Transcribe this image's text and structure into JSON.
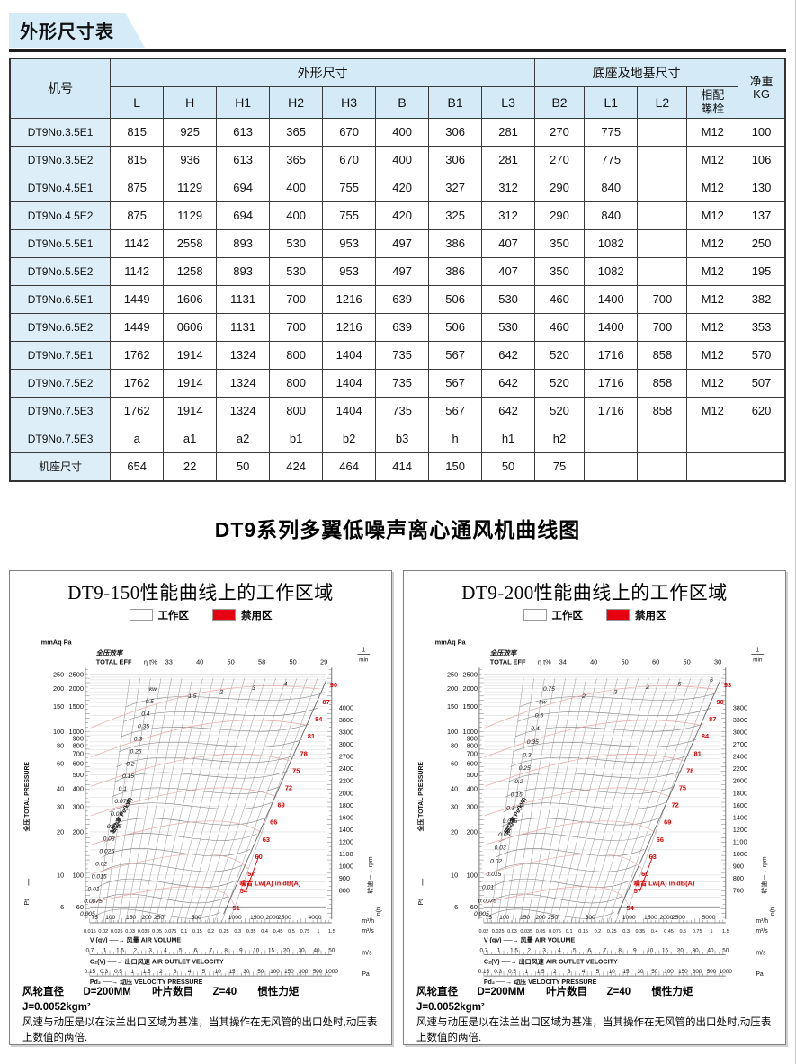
{
  "page": {
    "banner": "外形尺寸表",
    "section_title": "DT9系列多翼低噪声离心通风机曲线图"
  },
  "table": {
    "header": {
      "machine": "机号",
      "group_dims": "外形尺寸",
      "group_base": "底座及地基尺寸",
      "dim_cols": [
        "L",
        "H",
        "H1",
        "H2",
        "H3",
        "B",
        "B1",
        "L3"
      ],
      "base_cols": [
        "B2",
        "L1",
        "L2"
      ],
      "bolt_line1": "相配",
      "bolt_line2": "螺栓",
      "weight_line1": "净重",
      "weight_line2": "KG"
    },
    "rows": [
      {
        "model": "DT9No.3.5E1",
        "values": [
          "815",
          "925",
          "613",
          "365",
          "670",
          "400",
          "306",
          "281",
          "270",
          "775",
          "",
          "M12",
          "100"
        ]
      },
      {
        "model": "DT9No.3.5E2",
        "values": [
          "815",
          "936",
          "613",
          "365",
          "670",
          "400",
          "306",
          "281",
          "270",
          "775",
          "",
          "M12",
          "106"
        ]
      },
      {
        "model": "DT9No.4.5E1",
        "values": [
          "875",
          "1129",
          "694",
          "400",
          "755",
          "420",
          "327",
          "312",
          "290",
          "840",
          "",
          "M12",
          "130"
        ]
      },
      {
        "model": "DT9No.4.5E2",
        "values": [
          "875",
          "1129",
          "694",
          "400",
          "755",
          "420",
          "325",
          "312",
          "290",
          "840",
          "",
          "M12",
          "137"
        ]
      },
      {
        "model": "DT9No.5.5E1",
        "values": [
          "1142",
          "2558",
          "893",
          "530",
          "953",
          "497",
          "386",
          "407",
          "350",
          "1082",
          "",
          "M12",
          "250"
        ]
      },
      {
        "model": "DT9No.5.5E2",
        "values": [
          "1142",
          "1258",
          "893",
          "530",
          "953",
          "497",
          "386",
          "407",
          "350",
          "1082",
          "",
          "M12",
          "195"
        ]
      },
      {
        "model": "DT9No.6.5E1",
        "values": [
          "1449",
          "1606",
          "1131",
          "700",
          "1216",
          "639",
          "506",
          "530",
          "460",
          "1400",
          "700",
          "M12",
          "382"
        ]
      },
      {
        "model": "DT9No.6.5E2",
        "values": [
          "1449",
          "0606",
          "1131",
          "700",
          "1216",
          "639",
          "506",
          "530",
          "460",
          "1400",
          "700",
          "M12",
          "353"
        ]
      },
      {
        "model": "DT9No.7.5E1",
        "values": [
          "1762",
          "1914",
          "1324",
          "800",
          "1404",
          "735",
          "567",
          "642",
          "520",
          "1716",
          "858",
          "M12",
          "570"
        ]
      },
      {
        "model": "DT9No.7.5E2",
        "values": [
          "1762",
          "1914",
          "1324",
          "800",
          "1404",
          "735",
          "567",
          "642",
          "520",
          "1716",
          "858",
          "M12",
          "507"
        ]
      },
      {
        "model": "DT9No.7.5E3",
        "values": [
          "1762",
          "1914",
          "1324",
          "800",
          "1404",
          "735",
          "567",
          "642",
          "520",
          "1716",
          "858",
          "M12",
          "620"
        ]
      },
      {
        "model": "DT9No.7.5E3",
        "values": [
          "a",
          "a1",
          "a2",
          "b1",
          "b2",
          "b3",
          "h",
          "h1",
          "h2",
          "",
          "",
          "",
          ""
        ]
      },
      {
        "model": "机座尺寸",
        "values": [
          "654",
          "22",
          "50",
          "424",
          "464",
          "414",
          "150",
          "50",
          "75",
          "",
          "",
          "",
          ""
        ]
      }
    ]
  },
  "chart_data": [
    {
      "type": "line",
      "title": "DT9-150性能曲线上的工作区域",
      "legend": [
        {
          "label": "工作区",
          "color": "#ffffff"
        },
        {
          "label": "禁用区",
          "color": "#e60012"
        }
      ],
      "pressure_axis": {
        "header": "mmAq Pa",
        "unit_label": "全压 TOTAL PRESSURE",
        "symbol": "Pt",
        "mmaq": [
          "250",
          "200",
          "150",
          "100",
          "80",
          "60",
          "40",
          "30",
          "20",
          "10",
          "6"
        ],
        "pa": [
          "2500",
          "2000",
          "1500",
          "1000",
          "900",
          "800",
          "700",
          "600",
          "500",
          "400",
          "300",
          "200",
          "100",
          "60"
        ]
      },
      "efficiency": {
        "label_cn": "全压效率",
        "label_en": "TOTAL EFF",
        "symbol": "η t%",
        "values": [
          "33",
          "40",
          "50",
          "58",
          "50",
          "29"
        ]
      },
      "rpm_axis": {
        "unit_top": "1/min",
        "values": [
          "4000",
          "3800",
          "3300",
          "3000",
          "2700",
          "2400",
          "2200",
          "2000",
          "1800",
          "1600",
          "1400",
          "1200",
          "1100",
          "1000",
          "900",
          "800"
        ],
        "label": "转速 ─→ rpm",
        "symbol": "n(t)"
      },
      "power_lines": {
        "axis_label": "轴功率 Pe(kW)",
        "labels": [
          "kw",
          "0.5",
          "0.4",
          "0.35",
          "0.3",
          "0.25",
          "0.2",
          "0.15",
          "0.1",
          "0.075",
          "0.05",
          "0.035",
          "0.03",
          "0.025",
          "0.02",
          "0.015",
          "0.01",
          "0.0075",
          "0.005"
        ],
        "top_labels": [
          "1.5",
          "2",
          "3",
          "4"
        ]
      },
      "noise": {
        "label": "噪音 Lw(A) in dB(A)",
        "values": [
          "51",
          "54",
          "57",
          "60",
          "63",
          "66",
          "69",
          "72",
          "75",
          "78",
          "81",
          "84",
          "87",
          "90"
        ]
      },
      "flow_axis": {
        "m3h": [
          "75",
          "100",
          "150",
          "200",
          "250",
          "500",
          "1000",
          "1500",
          "2000",
          "2500",
          "4000"
        ],
        "m3h_unit": "m³/h",
        "m3s": [
          "0.015",
          "0.02",
          "0.025",
          "0.03",
          "0.035",
          "0.05",
          "0.075",
          "0.1",
          "0.15",
          "0.2",
          "0.25",
          "0.3",
          "0.35",
          "0.4",
          "0.45",
          "0.5",
          "0.75",
          "1",
          "1.5"
        ],
        "m3s_unit": "m³/s",
        "row_label": "V (qv) ──→ 风量 AIR VOLUME"
      },
      "outlet_axis": {
        "values": [
          "0.7",
          "1",
          "1.5",
          "2",
          "3",
          "4",
          "5",
          "6",
          "7",
          "8",
          "9",
          "10",
          "15",
          "20",
          "30",
          "40",
          "50"
        ],
        "unit": "m/s",
        "row_label": "C₂(V) ──→ 出口风速 AIR OUTLET VELOCITY"
      },
      "dyn_pressure_axis": {
        "values": [
          "0.15",
          "0.3",
          "0.5",
          "1",
          "1.5",
          "2",
          "3",
          "4",
          "5",
          "10",
          "15",
          "30",
          "50",
          "100",
          "150",
          "300",
          "500",
          "1000"
        ],
        "unit": "Pa",
        "row_label": "Pd₂ ──→ 动压 VELOCITY PRESSURE"
      },
      "footer": {
        "params": [
          {
            "label": "风轮直径",
            "value": "D=200MM"
          },
          {
            "label": "叶片数目",
            "value": "Z=40"
          },
          {
            "label": "惯性力矩",
            "value": "J=0.0052kgm²"
          }
        ],
        "note1": "风速与动压是以在法兰出口区域为基准，当其操作在无风管的出口处时,动压表",
        "note2": "上数值的两倍."
      }
    },
    {
      "type": "line",
      "title": "DT9-200性能曲线上的工作区域",
      "legend": [
        {
          "label": "工作区",
          "color": "#ffffff"
        },
        {
          "label": "禁用区",
          "color": "#e60012"
        }
      ],
      "pressure_axis": {
        "header": "mmAq Pa",
        "unit_label": "全压 TOTAL PRESSURE",
        "symbol": "Pt",
        "mmaq": [
          "250",
          "200",
          "150",
          "100",
          "80",
          "60",
          "40",
          "30",
          "20",
          "10",
          "6"
        ],
        "pa": [
          "2500",
          "2000",
          "1500",
          "1000",
          "900",
          "800",
          "700",
          "600",
          "500",
          "400",
          "300",
          "200",
          "100",
          "60"
        ]
      },
      "efficiency": {
        "label_cn": "全压效率",
        "label_en": "TOTAL EFF",
        "symbol": "η t%",
        "values": [
          "34",
          "40",
          "50",
          "60",
          "50",
          "30"
        ]
      },
      "rpm_axis": {
        "unit_top": "1/min",
        "values": [
          "3800",
          "3300",
          "3000",
          "2700",
          "2400",
          "2200",
          "2000",
          "1800",
          "1600",
          "1400",
          "1200",
          "1100",
          "1000",
          "900",
          "800",
          "700"
        ],
        "label": "转速 ─→ rpm",
        "symbol": "n(t)"
      },
      "power_lines": {
        "axis_label": "轴功率 Pe(kW)",
        "labels": [
          "0.75",
          "kw",
          "0.5",
          "0.4",
          "0.35",
          "0.3",
          "0.25",
          "0.2",
          "0.15",
          "0.1",
          "0.075",
          "0.05",
          "0.03",
          "0.02",
          "0.015",
          "0.01",
          "0.0075",
          "0.005"
        ],
        "top_labels": [
          "2",
          "3",
          "4",
          "5",
          "6"
        ]
      },
      "noise": {
        "label": "噪音 Lw(A) in dB(A)",
        "values": [
          "54",
          "57",
          "60",
          "63",
          "66",
          "69",
          "72",
          "75",
          "78",
          "81",
          "84",
          "87",
          "90",
          "93"
        ]
      },
      "flow_axis": {
        "m3h": [
          "75",
          "100",
          "150",
          "200",
          "250",
          "500",
          "1000",
          "1500",
          "2000",
          "2500",
          "5000"
        ],
        "m3h_unit": "m³/h",
        "m3s": [
          "0.02",
          "0.025",
          "0.03",
          "0.035",
          "0.05",
          "0.075",
          "0.1",
          "0.15",
          "0.2",
          "0.25",
          "0.3",
          "0.35",
          "0.4",
          "0.45",
          "0.5",
          "0.75",
          "1",
          "1.5"
        ],
        "m3s_unit": "m³/s",
        "row_label": "V (qv) ──→ 风量 AIR VOLUME"
      },
      "outlet_axis": {
        "values": [
          "0.7",
          "1",
          "1.5",
          "2",
          "3",
          "4",
          "5",
          "6",
          "7",
          "8",
          "9",
          "10",
          "15",
          "20",
          "30",
          "40",
          "50"
        ],
        "unit": "m/s",
        "row_label": "C₂(V) ──→ 出口风速 AIR OUTLET VELOCITY"
      },
      "dyn_pressure_axis": {
        "values": [
          "0.15",
          "0.3",
          "0.5",
          "1",
          "1.5",
          "2",
          "3",
          "4",
          "5",
          "10",
          "15",
          "30",
          "50",
          "100",
          "150",
          "300",
          "500",
          "1000"
        ],
        "unit": "Pa",
        "row_label": "Pd₂ ──→ 动压 VELOCITY PRESSURE"
      },
      "footer": {
        "params": [
          {
            "label": "风轮直径",
            "value": "D=200MM"
          },
          {
            "label": "叶片数目",
            "value": "Z=40"
          },
          {
            "label": "惯性力矩",
            "value": "J=0.0052kgm²"
          }
        ],
        "note1": "风速与动压是以在法兰出口区域为基准，当其操作在无风管的出口处时,动压表",
        "note2": "上数值的两倍."
      }
    }
  ]
}
